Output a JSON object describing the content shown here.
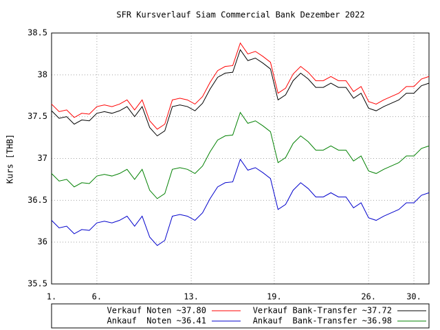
{
  "chart_data": {
    "type": "line",
    "title": "SFR Kursverlauf Siam Commercial Bank Dezember 2022",
    "y_label": "Kurs [THB]",
    "x": [
      0,
      2,
      4,
      6,
      8,
      10,
      12,
      14,
      16,
      18,
      20,
      22,
      24,
      26,
      28,
      30,
      32,
      34,
      36,
      38,
      40,
      42,
      44,
      46,
      48,
      50,
      52,
      54,
      56,
      58,
      60,
      62,
      64,
      66,
      68,
      70,
      72,
      74,
      76,
      78,
      80,
      82,
      84,
      86,
      88,
      90,
      92,
      94,
      96,
      98,
      100
    ],
    "xlim": [
      0,
      100
    ],
    "xticks": [
      {
        "value": 0,
        "label": "1."
      },
      {
        "value": 12,
        "label": "6."
      },
      {
        "value": 37,
        "label": "13."
      },
      {
        "value": 59,
        "label": "19."
      },
      {
        "value": 84,
        "label": "26."
      },
      {
        "value": 96,
        "label": "30."
      }
    ],
    "ylim": [
      35.5,
      38.5
    ],
    "yticks": [
      35.5,
      36,
      36.5,
      37,
      37.5,
      38,
      38.5
    ],
    "grid": true,
    "legend": "bottom",
    "series": [
      {
        "name": "Verkauf Noten ~37.80",
        "color": "#ff0000",
        "values": [
          37.65,
          37.56,
          37.58,
          37.49,
          37.54,
          37.53,
          37.62,
          37.64,
          37.62,
          37.65,
          37.7,
          37.58,
          37.7,
          37.45,
          37.35,
          37.41,
          37.7,
          37.72,
          37.7,
          37.65,
          37.74,
          37.91,
          38.05,
          38.1,
          38.11,
          38.38,
          38.25,
          38.28,
          38.22,
          38.15,
          37.78,
          37.84,
          38.01,
          38.1,
          38.03,
          37.93,
          37.93,
          37.98,
          37.93,
          37.93,
          37.8,
          37.86,
          37.68,
          37.65,
          37.7,
          37.74,
          37.78,
          37.86,
          37.86,
          37.95,
          37.98
        ]
      },
      {
        "name": "Verkauf Bank-Transfer ~37.72",
        "color": "#000000",
        "values": [
          37.57,
          37.48,
          37.5,
          37.41,
          37.46,
          37.45,
          37.54,
          37.56,
          37.54,
          37.57,
          37.62,
          37.5,
          37.62,
          37.37,
          37.27,
          37.33,
          37.62,
          37.64,
          37.62,
          37.57,
          37.66,
          37.83,
          37.97,
          38.02,
          38.03,
          38.3,
          38.17,
          38.2,
          38.14,
          38.07,
          37.7,
          37.76,
          37.93,
          38.02,
          37.95,
          37.85,
          37.85,
          37.9,
          37.85,
          37.85,
          37.72,
          37.78,
          37.6,
          37.57,
          37.62,
          37.66,
          37.7,
          37.78,
          37.78,
          37.87,
          37.9
        ]
      },
      {
        "name": "Ankauf  Noten ~36.41",
        "color": "#0000cc",
        "values": [
          36.26,
          36.17,
          36.19,
          36.1,
          36.15,
          36.14,
          36.23,
          36.25,
          36.23,
          36.26,
          36.31,
          36.19,
          36.31,
          36.06,
          35.96,
          36.02,
          36.31,
          36.33,
          36.31,
          36.26,
          36.35,
          36.52,
          36.66,
          36.71,
          36.72,
          36.99,
          36.86,
          36.89,
          36.83,
          36.76,
          36.39,
          36.45,
          36.62,
          36.71,
          36.64,
          36.54,
          36.54,
          36.59,
          36.54,
          36.54,
          36.41,
          36.47,
          36.29,
          36.26,
          36.31,
          36.35,
          36.39,
          36.47,
          36.47,
          36.56,
          36.59
        ]
      },
      {
        "name": "Ankauf  Bank-Transfer ~36.98",
        "color": "#008000",
        "values": [
          36.82,
          36.73,
          36.75,
          36.66,
          36.71,
          36.7,
          36.79,
          36.81,
          36.79,
          36.82,
          36.87,
          36.75,
          36.87,
          36.62,
          36.52,
          36.58,
          36.87,
          36.89,
          36.87,
          36.82,
          36.91,
          37.08,
          37.22,
          37.27,
          37.28,
          37.55,
          37.42,
          37.45,
          37.39,
          37.32,
          36.95,
          37.01,
          37.18,
          37.27,
          37.2,
          37.1,
          37.1,
          37.15,
          37.1,
          37.1,
          36.97,
          37.03,
          36.85,
          36.82,
          36.87,
          36.91,
          36.95,
          37.03,
          37.03,
          37.12,
          37.15
        ]
      }
    ]
  }
}
